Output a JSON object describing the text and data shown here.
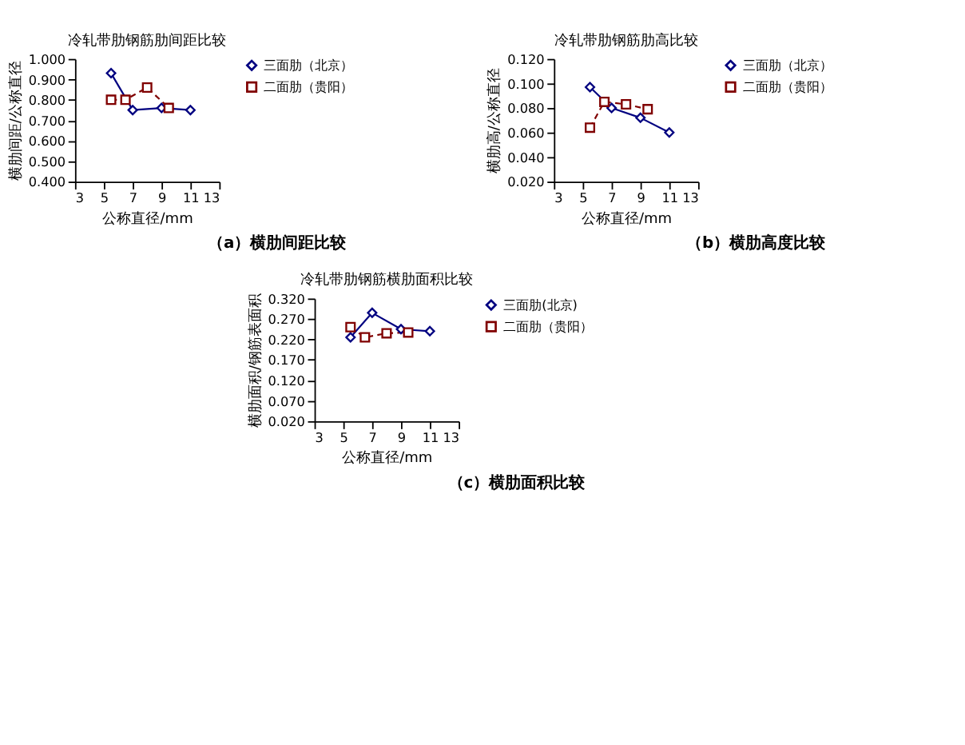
{
  "chart_data": [
    {
      "type": "line",
      "title": "冷轧带肋钢筋肋间距比较",
      "xlabel": "公称直径/mm",
      "ylabel": "横肋间距/公称直径",
      "xlim": [
        3,
        13
      ],
      "xticks": [
        3,
        5,
        7,
        9,
        11,
        13
      ],
      "ylim": [
        0.4,
        1.0
      ],
      "yticks": [
        {
          "value": 0.4,
          "label": "0.400"
        },
        {
          "value": 0.5,
          "label": "0.500"
        },
        {
          "value": 0.6,
          "label": "0.600"
        },
        {
          "value": 0.7,
          "label": "0.700"
        },
        {
          "value": 0.8,
          "label": "0.800"
        },
        {
          "value": 0.9,
          "label": "0.900"
        },
        {
          "value": 1.0,
          "label": "1.000"
        }
      ],
      "grid": false,
      "legend": "right",
      "annotations": [
        "（a）横肋间距比较"
      ],
      "series": [
        {
          "name": "三面肋（北京）",
          "color": "#000080",
          "marker": "diamond",
          "line_style": "solid",
          "x": [
            5.5,
            7,
            9,
            11
          ],
          "values": [
            0.93,
            0.75,
            0.76,
            0.75
          ]
        },
        {
          "name": "二面肋（贵阳）",
          "color": "#800000",
          "marker": "square",
          "line_style": "dashed",
          "x": [
            5.5,
            6.5,
            8,
            9.5
          ],
          "values": [
            0.8,
            0.8,
            0.86,
            0.76
          ]
        }
      ]
    },
    {
      "type": "line",
      "title": "冷轧带肋钢筋肋高比较",
      "xlabel": "公称直径/mm",
      "ylabel": "横肋高/公称直径",
      "xlim": [
        3,
        13
      ],
      "xticks": [
        3,
        5,
        7,
        9,
        11,
        13
      ],
      "ylim": [
        0.02,
        0.12
      ],
      "yticks": [
        {
          "value": 0.02,
          "label": "0.020"
        },
        {
          "value": 0.04,
          "label": "0.040"
        },
        {
          "value": 0.06,
          "label": "0.060"
        },
        {
          "value": 0.08,
          "label": "0.080"
        },
        {
          "value": 0.1,
          "label": "0.100"
        },
        {
          "value": 0.12,
          "label": "0.120"
        }
      ],
      "grid": false,
      "legend": "right",
      "annotations": [
        "（b）横肋高度比较"
      ],
      "series": [
        {
          "name": "三面肋（北京）",
          "color": "#000080",
          "marker": "diamond",
          "line_style": "solid",
          "x": [
            5.5,
            7,
            9,
            11
          ],
          "values": [
            0.097,
            0.08,
            0.072,
            0.06
          ]
        },
        {
          "name": "二面肋（贵阳）",
          "color": "#800000",
          "marker": "square",
          "line_style": "dashed",
          "x": [
            5.5,
            6.5,
            8,
            9.5
          ],
          "values": [
            0.064,
            0.085,
            0.083,
            0.079
          ]
        }
      ]
    },
    {
      "type": "line",
      "title": "冷轧带肋钢筋横肋面积比较",
      "xlabel": "公称直径/mm",
      "ylabel": "横肋面积/钢筋表面积",
      "xlim": [
        3,
        13
      ],
      "xticks": [
        3,
        5,
        7,
        9,
        11,
        13
      ],
      "ylim": [
        0.02,
        0.32
      ],
      "yticks": [
        {
          "value": 0.02,
          "label": "0.020"
        },
        {
          "value": 0.07,
          "label": "0.070"
        },
        {
          "value": 0.12,
          "label": "0.120"
        },
        {
          "value": 0.17,
          "label": "0.170"
        },
        {
          "value": 0.22,
          "label": "0.220"
        },
        {
          "value": 0.27,
          "label": "0.270"
        },
        {
          "value": 0.32,
          "label": "0.320"
        }
      ],
      "grid": false,
      "legend": "right",
      "annotations": [
        "（c）横肋面积比较"
      ],
      "series": [
        {
          "name": "三面肋(北京)",
          "color": "#000080",
          "marker": "diamond",
          "line_style": "solid",
          "x": [
            5.5,
            7,
            9,
            11
          ],
          "values": [
            0.225,
            0.285,
            0.245,
            0.24
          ]
        },
        {
          "name": "二面肋（贵阳）",
          "color": "#800000",
          "marker": "square",
          "line_style": "dashed",
          "x": [
            5.5,
            6.5,
            8,
            9.5
          ],
          "values": [
            0.25,
            0.225,
            0.235,
            0.237
          ]
        }
      ]
    }
  ]
}
